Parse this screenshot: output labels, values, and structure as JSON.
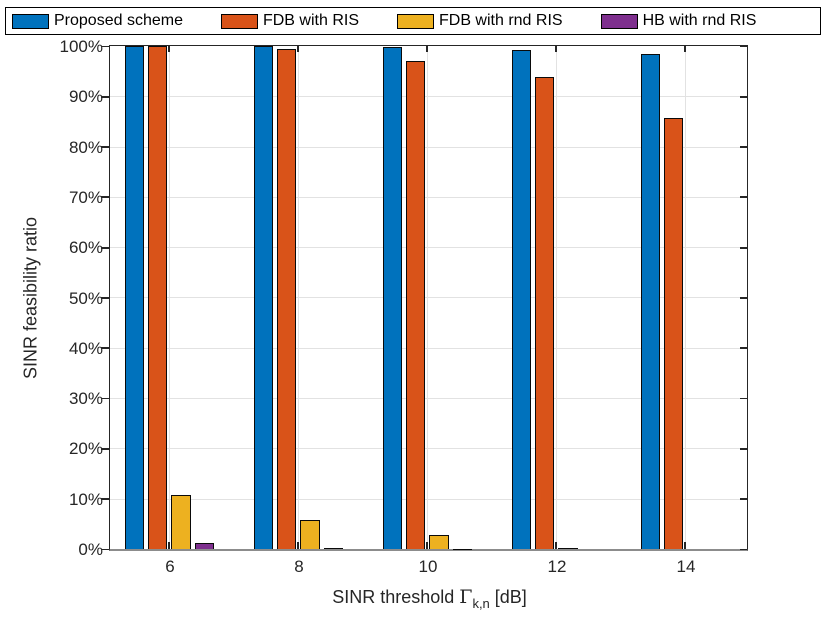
{
  "figure": {
    "background": "#ffffff"
  },
  "chart_data": {
    "type": "bar",
    "title": "",
    "categories": [
      6,
      8,
      10,
      12,
      14
    ],
    "series": [
      {
        "name": "Proposed scheme",
        "color": "#0072BD",
        "values": [
          100,
          100,
          99.8,
          99.2,
          98.4
        ]
      },
      {
        "name": "FDB with RIS",
        "color": "#D95319",
        "values": [
          100,
          99.5,
          97.0,
          94.0,
          85.8
        ]
      },
      {
        "name": "FDB with rnd RIS",
        "color": "#EDB120",
        "values": [
          10.8,
          5.8,
          2.8,
          0.3,
          0
        ]
      },
      {
        "name": "HB with rnd RIS",
        "color": "#7E2F8E",
        "values": [
          1.3,
          0.35,
          0.1,
          0,
          0
        ]
      }
    ],
    "xlabel": "SINR threshold Γ_{k,n} [dB]",
    "xlabel_parts": {
      "prefix": "SINR threshold ",
      "symbol": "Γ",
      "subscript": "k,n",
      "suffix": " [dB]"
    },
    "ylabel": "SINR feasibility ratio",
    "ylim": [
      0,
      100
    ],
    "yticks": [
      0,
      10,
      20,
      30,
      40,
      50,
      60,
      70,
      80,
      90,
      100
    ],
    "ytick_labels": [
      "0%",
      "10%",
      "20%",
      "30%",
      "40%",
      "50%",
      "60%",
      "70%",
      "80%",
      "90%",
      "100%"
    ],
    "xtick_labels": [
      "6",
      "8",
      "10",
      "12",
      "14"
    ],
    "grid": true,
    "legend_position": "top-horizontal",
    "bar_edge_color": "#0a0a0a",
    "axis_color": "#262626",
    "grid_color": "#e2e2e2"
  }
}
